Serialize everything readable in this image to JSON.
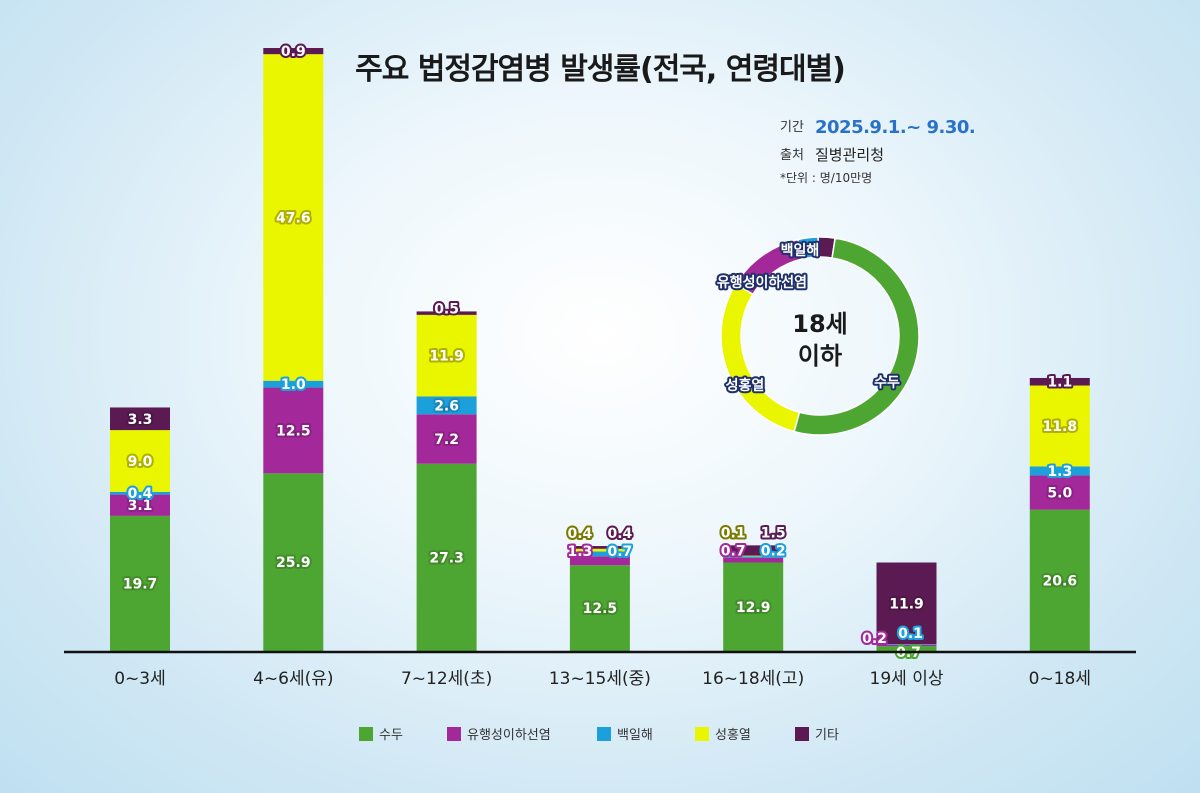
{
  "title": "주요 법정감염병 발생률(전국, 연령대별)",
  "meta": {
    "period_key": "기간",
    "period_value": "2025.9.1.~ 9.30.",
    "source_key": "출처",
    "source_value": "질병관리청",
    "unit_note": "*단위 : 명/10만명"
  },
  "colors": {
    "수두": "#4ea632",
    "유행성이하선염": "#a3289a",
    "백일해": "#1ba0dc",
    "성홍열": "#e9f600",
    "기타": "#5b1b52"
  },
  "chart_data": {
    "type": "bar",
    "stacked": true,
    "title": "주요 법정감염병 발생률(전국, 연령대별)",
    "unit": "명/10만명",
    "categories": [
      "0~3세",
      "4~6세(유)",
      "7~12세(초)",
      "13~15세(중)",
      "16~18세(고)",
      "19세 이상",
      "0~18세"
    ],
    "series": [
      {
        "name": "수두",
        "values": [
          19.7,
          25.9,
          27.3,
          12.5,
          12.9,
          0.7,
          20.6
        ]
      },
      {
        "name": "유행성이하선염",
        "values": [
          3.1,
          12.5,
          7.2,
          1.3,
          0.7,
          0.2,
          5.0
        ]
      },
      {
        "name": "백일해",
        "values": [
          0.4,
          1.0,
          2.6,
          0.7,
          0.2,
          0.1,
          1.3
        ]
      },
      {
        "name": "성홍열",
        "values": [
          9.0,
          47.6,
          11.9,
          0.4,
          0.1,
          0.0,
          11.8
        ]
      },
      {
        "name": "기타",
        "values": [
          3.3,
          0.9,
          0.5,
          0.4,
          1.5,
          11.9,
          1.1
        ]
      }
    ],
    "value_labels": [
      [
        "19.7",
        "3.1",
        "0.4",
        "9.0",
        "3.3"
      ],
      [
        "25.9",
        "12.5",
        "1.0",
        "47.6",
        "0.9"
      ],
      [
        "27.3",
        "7.2",
        "2.6",
        "11.9",
        "0.5"
      ],
      [
        "12.5",
        "1.3",
        "0.7",
        "0.4",
        "0.4"
      ],
      [
        "12.9",
        "0.7",
        "0.2",
        "0.1",
        "1.5"
      ],
      [
        "0.7",
        "0.2",
        "0.1",
        "",
        "11.9"
      ],
      [
        "20.6",
        "5.0",
        "1.3",
        "11.8",
        "1.1"
      ]
    ],
    "legend": [
      "수두",
      "유행성이하선염",
      "백일해",
      "성홍열",
      "기타"
    ],
    "legend_position": "bottom-center",
    "donut": {
      "title": "18세 이하",
      "title_line1": "18세",
      "title_line2": "이하",
      "labels": [
        "수두",
        "유행성이하선염",
        "백일해",
        "성홍열",
        "기타"
      ],
      "values": [
        20.6,
        5.0,
        1.3,
        11.8,
        1.1
      ],
      "tags": [
        "수두",
        "유행성이하선염",
        "백일해",
        "성홍열"
      ]
    }
  }
}
